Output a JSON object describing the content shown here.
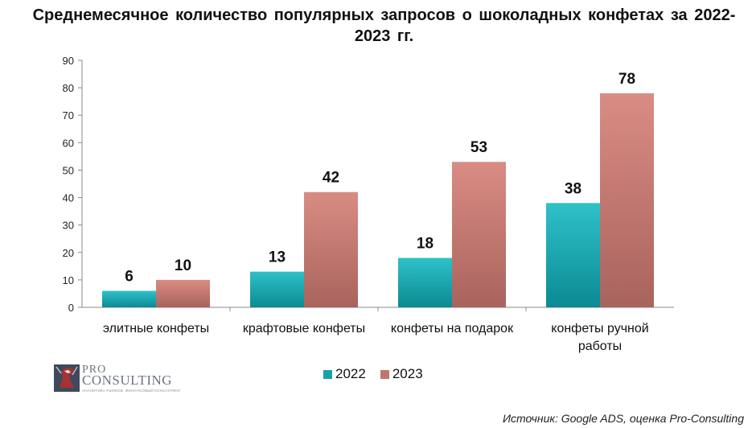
{
  "chart_data": {
    "type": "bar",
    "title": "Среднемесячное количество популярных запросов о шоколадных конфетах за 2022-2023 гг.",
    "categories": [
      [
        "элитные конфеты"
      ],
      [
        "крафтовые конфеты"
      ],
      [
        "конфеты на подарок"
      ],
      [
        "конфеты ручной",
        "работы"
      ]
    ],
    "series": [
      {
        "name": "2022",
        "values": [
          6,
          13,
          18,
          38
        ],
        "color": "#17a2aa"
      },
      {
        "name": "2023",
        "values": [
          10,
          42,
          53,
          78
        ],
        "color": "#c0756e"
      }
    ],
    "ylim": [
      0,
      90
    ],
    "yticks": [
      0,
      10,
      20,
      30,
      40,
      50,
      60,
      70,
      80,
      90
    ],
    "grid": false,
    "legend": "bottom-center",
    "data_labels": true
  },
  "logo": {
    "pro": "PRO",
    "consulting": "CONSULTING",
    "tagline": "АНАЛИТИКА РЫНКОВ, ФИНАНСОВЫЙ КОНСАЛТИНГ"
  },
  "source": "Источник: Google ADS, оценка Pro-Consulting",
  "icons": {
    "logo": "horse-head-icon"
  }
}
